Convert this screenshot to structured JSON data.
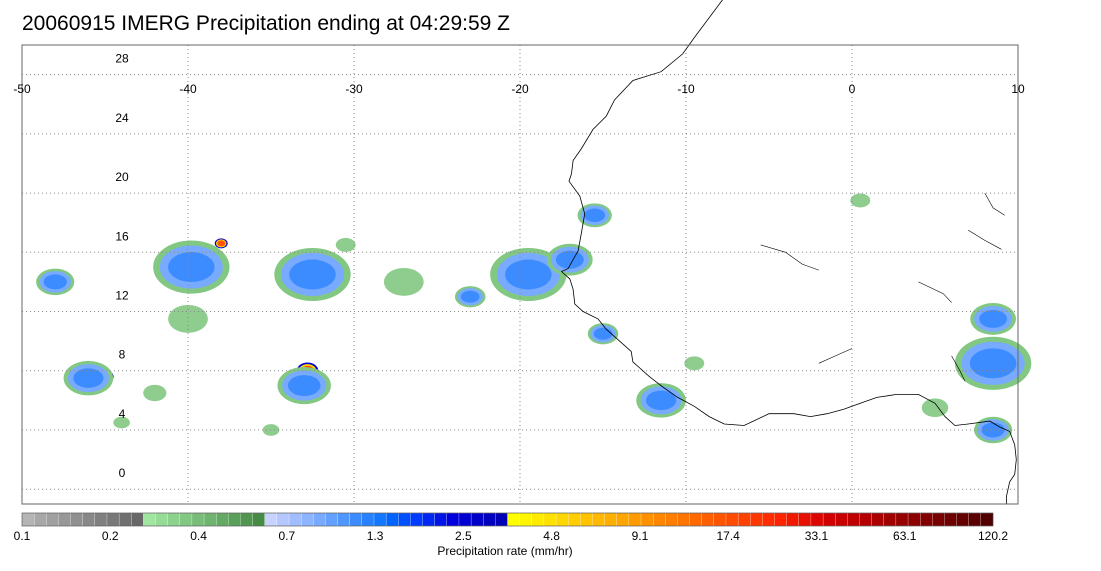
{
  "title": "20060915 IMERG Precipitation ending at 04:29:59 Z",
  "map": {
    "lon_range": [
      -50,
      10
    ],
    "lat_range": [
      -1,
      30
    ],
    "lon_ticks": [
      -50,
      -40,
      -30,
      -20,
      -10,
      0,
      10
    ],
    "lat_ticks": [
      0,
      4,
      8,
      12,
      16,
      20,
      24,
      28
    ],
    "lon_tick_labels": [
      "-50",
      "-40",
      "-30",
      "-20",
      "-10",
      "0",
      "10"
    ],
    "lat_tick_labels": [
      "0",
      "4",
      "8",
      "12",
      "16",
      "20",
      "24",
      "28"
    ],
    "grid": true,
    "grid_style": "dotted"
  },
  "colorbar": {
    "title": "Precipitation rate (mm/hr)",
    "tick_labels": [
      "0.1",
      "0.2",
      "0.4",
      "0.7",
      "1.3",
      "2.5",
      "4.8",
      "9.1",
      "17.4",
      "33.1",
      "63.1",
      "120.2"
    ],
    "colors": [
      "#b4b4b4",
      "#a8a8a8",
      "#a0a0a0",
      "#989898",
      "#909090",
      "#888888",
      "#808080",
      "#787878",
      "#707070",
      "#686868",
      "#a0e6a0",
      "#96dc96",
      "#8cd28c",
      "#82c882",
      "#78be78",
      "#6eb46e",
      "#64aa64",
      "#5aa05a",
      "#509650",
      "#468c46",
      "#c8d2ff",
      "#b4c8ff",
      "#a0beff",
      "#8cb4ff",
      "#78aaff",
      "#64a0ff",
      "#5096ff",
      "#3c8cff",
      "#2882ff",
      "#1478ff",
      "#0064ff",
      "#0050ff",
      "#003cff",
      "#0028f0",
      "#0014e6",
      "#0000dc",
      "#0000d2",
      "#0000c8",
      "#0000be",
      "#0000b4",
      "#ffff00",
      "#fff500",
      "#ffeb00",
      "#ffe100",
      "#ffd700",
      "#ffcd00",
      "#ffc300",
      "#ffb900",
      "#ffaf00",
      "#ffa500",
      "#ff9b00",
      "#ff9100",
      "#ff8700",
      "#ff7d00",
      "#ff7300",
      "#ff6900",
      "#ff5f00",
      "#ff5500",
      "#ff4b00",
      "#ff4100",
      "#ff3700",
      "#ff2d00",
      "#ff2300",
      "#f01900",
      "#e60f00",
      "#dc0500",
      "#d20000",
      "#c80000",
      "#be0000",
      "#b40000",
      "#aa0000",
      "#a00000",
      "#960000",
      "#8c0000",
      "#820000",
      "#780000",
      "#6e0000",
      "#640000",
      "#5a0000",
      "#500000"
    ]
  },
  "precip_cells": [
    {
      "lon": -40.5,
      "lat": 15.0,
      "r": 0.9,
      "level": "heavy"
    },
    {
      "lon": -38.5,
      "lat": 15.6,
      "r": 0.5,
      "level": "heavy"
    },
    {
      "lon": -39.8,
      "lat": 14.2,
      "r": 0.6,
      "level": "heavy"
    },
    {
      "lon": -39.8,
      "lat": 15.0,
      "r": 2.0,
      "level": "moderate"
    },
    {
      "lon": -33.0,
      "lat": 14.6,
      "r": 1.0,
      "level": "heavy"
    },
    {
      "lon": -32.5,
      "lat": 14.5,
      "r": 2.0,
      "level": "moderate"
    },
    {
      "lon": -20.0,
      "lat": 14.8,
      "r": 0.5,
      "level": "heavy"
    },
    {
      "lon": -18.3,
      "lat": 14.8,
      "r": 0.9,
      "level": "heavy"
    },
    {
      "lon": -19.5,
      "lat": 14.5,
      "r": 2.0,
      "level": "moderate"
    },
    {
      "lon": -17.0,
      "lat": 15.5,
      "r": 1.2,
      "level": "moderate"
    },
    {
      "lon": 8.0,
      "lat": 8.2,
      "r": 0.8,
      "level": "heavy"
    },
    {
      "lon": 9.0,
      "lat": 8.0,
      "r": 0.8,
      "level": "heavy"
    },
    {
      "lon": 8.5,
      "lat": 8.5,
      "r": 2.0,
      "level": "moderate"
    },
    {
      "lon": 8.5,
      "lat": 11.5,
      "r": 1.2,
      "level": "moderate"
    },
    {
      "lon": 8.3,
      "lat": 4.1,
      "r": 0.4,
      "level": "heavy"
    },
    {
      "lon": 8.5,
      "lat": 4.0,
      "r": 1.0,
      "level": "moderate"
    },
    {
      "lon": -11.5,
      "lat": 6.5,
      "r": 0.5,
      "level": "heavy"
    },
    {
      "lon": -11.5,
      "lat": 6.0,
      "r": 1.3,
      "level": "moderate"
    },
    {
      "lon": -15.0,
      "lat": 10.5,
      "r": 0.8,
      "level": "moderate"
    },
    {
      "lon": -32.8,
      "lat": 8.0,
      "r": 0.5,
      "level": "heavy"
    },
    {
      "lon": -33.0,
      "lat": 7.0,
      "r": 1.4,
      "level": "moderate"
    },
    {
      "lon": -45.0,
      "lat": 7.6,
      "r": 0.4,
      "level": "heavy"
    },
    {
      "lon": -46.0,
      "lat": 7.5,
      "r": 1.3,
      "level": "moderate"
    },
    {
      "lon": -48.0,
      "lat": 14.0,
      "r": 1.0,
      "level": "moderate"
    },
    {
      "lon": -38.0,
      "lat": 16.6,
      "r": 0.3,
      "level": "heavy"
    },
    {
      "lon": -15.5,
      "lat": 18.5,
      "r": 0.9,
      "level": "moderate"
    },
    {
      "lon": -23.0,
      "lat": 13.0,
      "r": 0.8,
      "level": "moderate"
    },
    {
      "lon": -27.0,
      "lat": 14.0,
      "r": 1.2,
      "level": "light"
    },
    {
      "lon": -40.0,
      "lat": 11.5,
      "r": 1.2,
      "level": "light"
    },
    {
      "lon": -42.0,
      "lat": 6.5,
      "r": 0.7,
      "level": "light"
    },
    {
      "lon": 0.5,
      "lat": 19.5,
      "r": 0.6,
      "level": "light"
    },
    {
      "lon": -9.5,
      "lat": 8.5,
      "r": 0.6,
      "level": "light"
    },
    {
      "lon": 5.0,
      "lat": 5.5,
      "r": 0.8,
      "level": "light"
    },
    {
      "lon": -30.5,
      "lat": 16.5,
      "r": 0.6,
      "level": "light"
    },
    {
      "lon": -35.0,
      "lat": 4.0,
      "r": 0.5,
      "level": "light"
    },
    {
      "lon": -44.0,
      "lat": 4.5,
      "r": 0.5,
      "level": "light"
    }
  ],
  "level_colors": {
    "light": "#82c882",
    "moderate": "#3c8cff",
    "heavy": "#ff5500",
    "core": "#ffd700"
  }
}
